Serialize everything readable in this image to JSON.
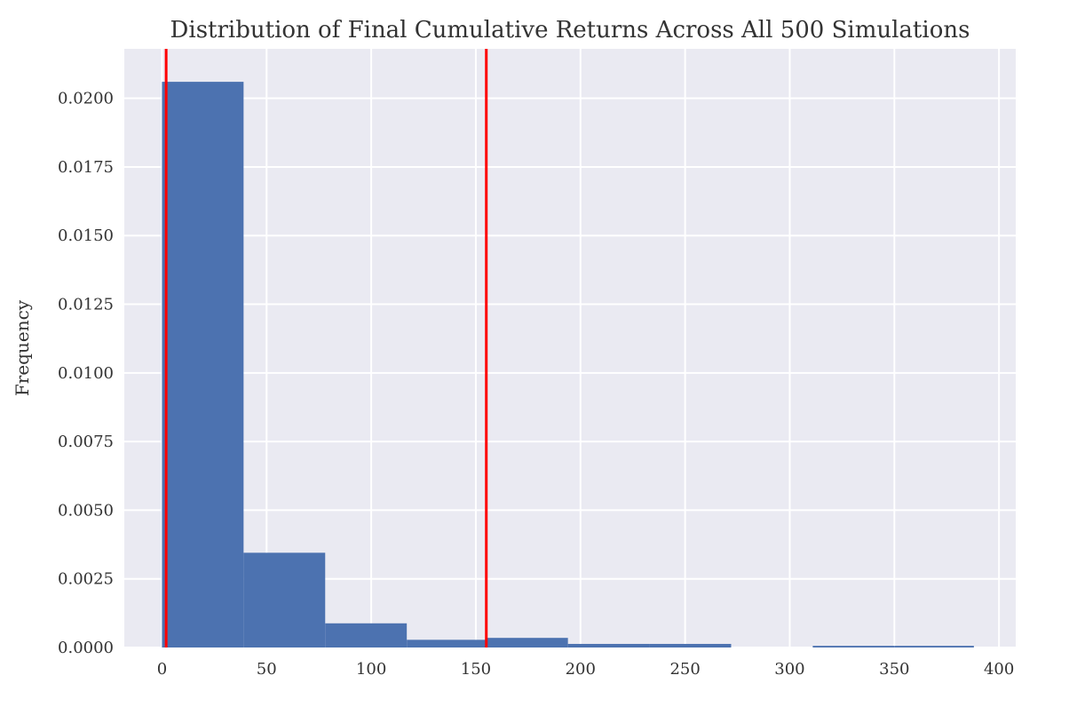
{
  "chart_data": {
    "type": "bar",
    "title": "Distribution of Final Cumulative Returns Across All 500 Simulations",
    "xlabel": "",
    "ylabel": "Frequency",
    "xlim": [
      -18,
      408
    ],
    "ylim": [
      0,
      0.0218
    ],
    "grid": true,
    "xticks": [
      0,
      50,
      100,
      150,
      200,
      250,
      300,
      350,
      400
    ],
    "yticks": [
      0.0,
      0.0025,
      0.005,
      0.0075,
      0.01,
      0.0125,
      0.015,
      0.0175,
      0.02
    ],
    "ytick_labels": [
      "0.0000",
      "0.0025",
      "0.0050",
      "0.0075",
      "0.0100",
      "0.0125",
      "0.0150",
      "0.0175",
      "0.0200"
    ],
    "bins": [
      {
        "x0": 0,
        "x1": 39,
        "value": 0.0206
      },
      {
        "x0": 39,
        "x1": 78,
        "value": 0.00345
      },
      {
        "x0": 78,
        "x1": 117,
        "value": 0.00088
      },
      {
        "x0": 117,
        "x1": 155,
        "value": 0.00028
      },
      {
        "x0": 155,
        "x1": 194,
        "value": 0.00035
      },
      {
        "x0": 194,
        "x1": 233,
        "value": 0.00013
      },
      {
        "x0": 233,
        "x1": 272,
        "value": 0.00013
      },
      {
        "x0": 272,
        "x1": 311,
        "value": 0.0
      },
      {
        "x0": 311,
        "x1": 350,
        "value": 6e-05
      },
      {
        "x0": 350,
        "x1": 388,
        "value": 6e-05
      }
    ],
    "vlines": [
      2,
      155
    ],
    "colors": {
      "bar": "#4c72b0",
      "vline": "#ff0000",
      "background": "#eaeaf2",
      "grid": "#ffffff"
    }
  }
}
